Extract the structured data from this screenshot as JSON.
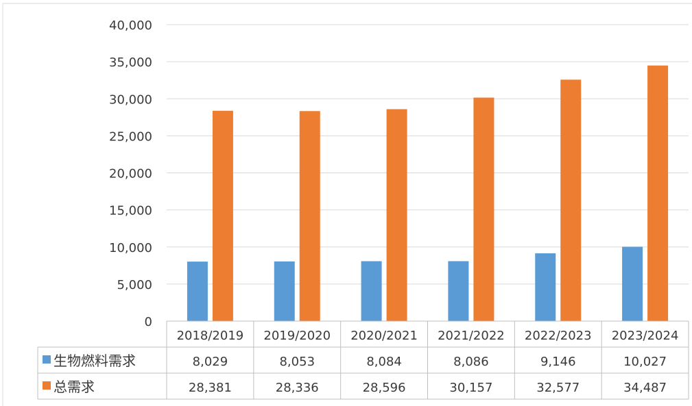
{
  "chart_data": {
    "type": "bar",
    "categories": [
      "2018/2019",
      "2019/2020",
      "2020/2021",
      "2021/2022",
      "2022/2023",
      "2023/2024"
    ],
    "series": [
      {
        "name": "生物燃料需求",
        "color": "#5b9bd5",
        "values": [
          8029,
          8053,
          8084,
          8086,
          9146,
          10027
        ]
      },
      {
        "name": "总需求",
        "color": "#ed7d31",
        "values": [
          28381,
          28336,
          28596,
          30157,
          32577,
          34487
        ]
      }
    ],
    "ylim": [
      0,
      40000
    ],
    "yticks": [
      0,
      5000,
      10000,
      15000,
      20000,
      25000,
      30000,
      35000,
      40000
    ],
    "ytick_labels": [
      "0",
      "5,000",
      "10,000",
      "15,000",
      "20,000",
      "25,000",
      "30,000",
      "35,000",
      "40,000"
    ],
    "table": {
      "rows": [
        [
          "8,029",
          "8,053",
          "8,084",
          "8,086",
          "9,146",
          "10,027"
        ],
        [
          "28,381",
          "28,336",
          "28,596",
          "30,157",
          "32,577",
          "34,487"
        ]
      ]
    },
    "grid": true,
    "legend": "data-table-row-headers"
  }
}
